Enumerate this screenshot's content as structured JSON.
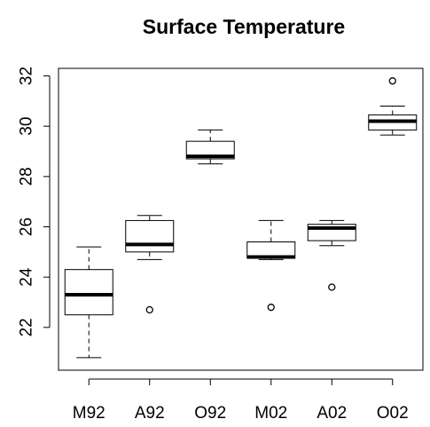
{
  "chart_data": {
    "type": "boxplot",
    "title": "Surface Temperature",
    "xlabel": "",
    "ylabel": "",
    "ylim": [
      20.3,
      32.3
    ],
    "yticks": [
      22,
      24,
      26,
      28,
      30,
      32
    ],
    "categories": [
      "M92",
      "A92",
      "O92",
      "M02",
      "A02",
      "O02"
    ],
    "boxes": [
      {
        "category": "M92",
        "whisker_low": 20.8,
        "q1": 22.5,
        "median": 23.3,
        "q3": 24.3,
        "whisker_high": 25.2,
        "outliers": []
      },
      {
        "category": "A92",
        "whisker_low": 24.7,
        "q1": 25.0,
        "median": 25.3,
        "q3": 26.25,
        "whisker_high": 26.45,
        "outliers": [
          22.7
        ]
      },
      {
        "category": "O92",
        "whisker_low": 28.5,
        "q1": 28.7,
        "median": 28.8,
        "q3": 29.4,
        "whisker_high": 29.85,
        "outliers": []
      },
      {
        "category": "M02",
        "whisker_low": 24.7,
        "q1": 24.75,
        "median": 24.8,
        "q3": 25.4,
        "whisker_high": 26.25,
        "outliers": [
          22.8
        ]
      },
      {
        "category": "A02",
        "whisker_low": 25.25,
        "q1": 25.45,
        "median": 25.95,
        "q3": 26.1,
        "whisker_high": 26.25,
        "outliers": [
          23.6
        ]
      },
      {
        "category": "O02",
        "whisker_low": 29.65,
        "q1": 29.85,
        "median": 30.2,
        "q3": 30.45,
        "whisker_high": 30.8,
        "outliers": [
          31.8
        ]
      }
    ],
    "grid": false,
    "legend": "none"
  }
}
